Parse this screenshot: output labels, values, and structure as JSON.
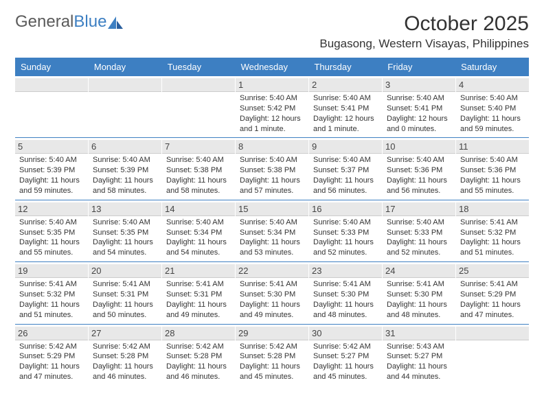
{
  "logo": {
    "text1": "General",
    "text2": "Blue"
  },
  "title": "October 2025",
  "location": "Bugasong, Western Visayas, Philippines",
  "colors": {
    "header_bg": "#3d7fc2",
    "daynum_bg": "#e8e8e8",
    "text": "#333333",
    "logo_gray": "#5a5a5a",
    "logo_blue": "#3d7fc2",
    "background": "#ffffff"
  },
  "fonts": {
    "title_size": 30,
    "location_size": 17,
    "header_size": 13,
    "daynum_size": 13,
    "detail_size": 11
  },
  "dayNames": [
    "Sunday",
    "Monday",
    "Tuesday",
    "Wednesday",
    "Thursday",
    "Friday",
    "Saturday"
  ],
  "weeks": [
    [
      {
        "day": "",
        "sunrise": "",
        "sunset": "",
        "daylight": "",
        "empty": true
      },
      {
        "day": "",
        "sunrise": "",
        "sunset": "",
        "daylight": "",
        "empty": true
      },
      {
        "day": "",
        "sunrise": "",
        "sunset": "",
        "daylight": "",
        "empty": true
      },
      {
        "day": "1",
        "sunrise": "Sunrise: 5:40 AM",
        "sunset": "Sunset: 5:42 PM",
        "daylight": "Daylight: 12 hours and 1 minute."
      },
      {
        "day": "2",
        "sunrise": "Sunrise: 5:40 AM",
        "sunset": "Sunset: 5:41 PM",
        "daylight": "Daylight: 12 hours and 1 minute."
      },
      {
        "day": "3",
        "sunrise": "Sunrise: 5:40 AM",
        "sunset": "Sunset: 5:41 PM",
        "daylight": "Daylight: 12 hours and 0 minutes."
      },
      {
        "day": "4",
        "sunrise": "Sunrise: 5:40 AM",
        "sunset": "Sunset: 5:40 PM",
        "daylight": "Daylight: 11 hours and 59 minutes."
      }
    ],
    [
      {
        "day": "5",
        "sunrise": "Sunrise: 5:40 AM",
        "sunset": "Sunset: 5:39 PM",
        "daylight": "Daylight: 11 hours and 59 minutes."
      },
      {
        "day": "6",
        "sunrise": "Sunrise: 5:40 AM",
        "sunset": "Sunset: 5:39 PM",
        "daylight": "Daylight: 11 hours and 58 minutes."
      },
      {
        "day": "7",
        "sunrise": "Sunrise: 5:40 AM",
        "sunset": "Sunset: 5:38 PM",
        "daylight": "Daylight: 11 hours and 58 minutes."
      },
      {
        "day": "8",
        "sunrise": "Sunrise: 5:40 AM",
        "sunset": "Sunset: 5:38 PM",
        "daylight": "Daylight: 11 hours and 57 minutes."
      },
      {
        "day": "9",
        "sunrise": "Sunrise: 5:40 AM",
        "sunset": "Sunset: 5:37 PM",
        "daylight": "Daylight: 11 hours and 56 minutes."
      },
      {
        "day": "10",
        "sunrise": "Sunrise: 5:40 AM",
        "sunset": "Sunset: 5:36 PM",
        "daylight": "Daylight: 11 hours and 56 minutes."
      },
      {
        "day": "11",
        "sunrise": "Sunrise: 5:40 AM",
        "sunset": "Sunset: 5:36 PM",
        "daylight": "Daylight: 11 hours and 55 minutes."
      }
    ],
    [
      {
        "day": "12",
        "sunrise": "Sunrise: 5:40 AM",
        "sunset": "Sunset: 5:35 PM",
        "daylight": "Daylight: 11 hours and 55 minutes."
      },
      {
        "day": "13",
        "sunrise": "Sunrise: 5:40 AM",
        "sunset": "Sunset: 5:35 PM",
        "daylight": "Daylight: 11 hours and 54 minutes."
      },
      {
        "day": "14",
        "sunrise": "Sunrise: 5:40 AM",
        "sunset": "Sunset: 5:34 PM",
        "daylight": "Daylight: 11 hours and 54 minutes."
      },
      {
        "day": "15",
        "sunrise": "Sunrise: 5:40 AM",
        "sunset": "Sunset: 5:34 PM",
        "daylight": "Daylight: 11 hours and 53 minutes."
      },
      {
        "day": "16",
        "sunrise": "Sunrise: 5:40 AM",
        "sunset": "Sunset: 5:33 PM",
        "daylight": "Daylight: 11 hours and 52 minutes."
      },
      {
        "day": "17",
        "sunrise": "Sunrise: 5:40 AM",
        "sunset": "Sunset: 5:33 PM",
        "daylight": "Daylight: 11 hours and 52 minutes."
      },
      {
        "day": "18",
        "sunrise": "Sunrise: 5:41 AM",
        "sunset": "Sunset: 5:32 PM",
        "daylight": "Daylight: 11 hours and 51 minutes."
      }
    ],
    [
      {
        "day": "19",
        "sunrise": "Sunrise: 5:41 AM",
        "sunset": "Sunset: 5:32 PM",
        "daylight": "Daylight: 11 hours and 51 minutes."
      },
      {
        "day": "20",
        "sunrise": "Sunrise: 5:41 AM",
        "sunset": "Sunset: 5:31 PM",
        "daylight": "Daylight: 11 hours and 50 minutes."
      },
      {
        "day": "21",
        "sunrise": "Sunrise: 5:41 AM",
        "sunset": "Sunset: 5:31 PM",
        "daylight": "Daylight: 11 hours and 49 minutes."
      },
      {
        "day": "22",
        "sunrise": "Sunrise: 5:41 AM",
        "sunset": "Sunset: 5:30 PM",
        "daylight": "Daylight: 11 hours and 49 minutes."
      },
      {
        "day": "23",
        "sunrise": "Sunrise: 5:41 AM",
        "sunset": "Sunset: 5:30 PM",
        "daylight": "Daylight: 11 hours and 48 minutes."
      },
      {
        "day": "24",
        "sunrise": "Sunrise: 5:41 AM",
        "sunset": "Sunset: 5:30 PM",
        "daylight": "Daylight: 11 hours and 48 minutes."
      },
      {
        "day": "25",
        "sunrise": "Sunrise: 5:41 AM",
        "sunset": "Sunset: 5:29 PM",
        "daylight": "Daylight: 11 hours and 47 minutes."
      }
    ],
    [
      {
        "day": "26",
        "sunrise": "Sunrise: 5:42 AM",
        "sunset": "Sunset: 5:29 PM",
        "daylight": "Daylight: 11 hours and 47 minutes."
      },
      {
        "day": "27",
        "sunrise": "Sunrise: 5:42 AM",
        "sunset": "Sunset: 5:28 PM",
        "daylight": "Daylight: 11 hours and 46 minutes."
      },
      {
        "day": "28",
        "sunrise": "Sunrise: 5:42 AM",
        "sunset": "Sunset: 5:28 PM",
        "daylight": "Daylight: 11 hours and 46 minutes."
      },
      {
        "day": "29",
        "sunrise": "Sunrise: 5:42 AM",
        "sunset": "Sunset: 5:28 PM",
        "daylight": "Daylight: 11 hours and 45 minutes."
      },
      {
        "day": "30",
        "sunrise": "Sunrise: 5:42 AM",
        "sunset": "Sunset: 5:27 PM",
        "daylight": "Daylight: 11 hours and 45 minutes."
      },
      {
        "day": "31",
        "sunrise": "Sunrise: 5:43 AM",
        "sunset": "Sunset: 5:27 PM",
        "daylight": "Daylight: 11 hours and 44 minutes."
      },
      {
        "day": "",
        "sunrise": "",
        "sunset": "",
        "daylight": "",
        "empty": true
      }
    ]
  ]
}
